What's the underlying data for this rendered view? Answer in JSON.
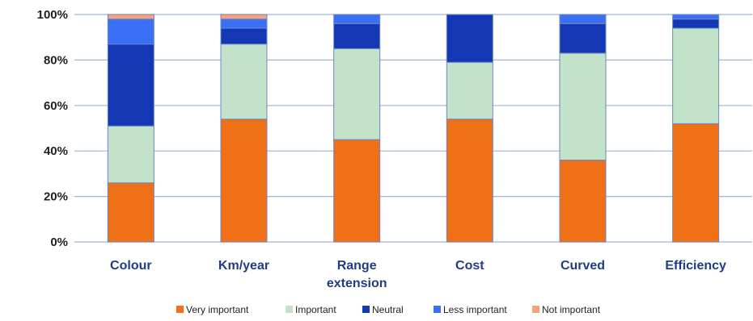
{
  "chart_data": {
    "type": "bar",
    "stacked": true,
    "categories": [
      [
        "Colour"
      ],
      [
        "Km/year"
      ],
      [
        "Range",
        "extension"
      ],
      [
        "Cost"
      ],
      [
        "Curved"
      ],
      [
        "Efficiency"
      ]
    ],
    "ylim": [
      0,
      100
    ],
    "yticks": [
      0,
      20,
      40,
      60,
      80,
      100
    ],
    "ytick_labels": [
      "0%",
      "20%",
      "40%",
      "60%",
      "80%",
      "100%"
    ],
    "grid": "horizontal",
    "legend_position": "bottom",
    "series": [
      {
        "name": "Very important",
        "color": "#f07018",
        "values": [
          26,
          54,
          45,
          54,
          36,
          52
        ]
      },
      {
        "name": "Important",
        "color": "#c2e3c9",
        "values": [
          25,
          33,
          40,
          25,
          47,
          42
        ]
      },
      {
        "name": "Neutral",
        "color": "#1438b4",
        "values": [
          36,
          7,
          11,
          21,
          13,
          4
        ]
      },
      {
        "name": "Less important",
        "color": "#3a70f5",
        "values": [
          11,
          4,
          4,
          0,
          4,
          2
        ]
      },
      {
        "name": "Not important",
        "color": "#f4a37a",
        "values": [
          2,
          2,
          0,
          0,
          0,
          0
        ]
      }
    ]
  }
}
